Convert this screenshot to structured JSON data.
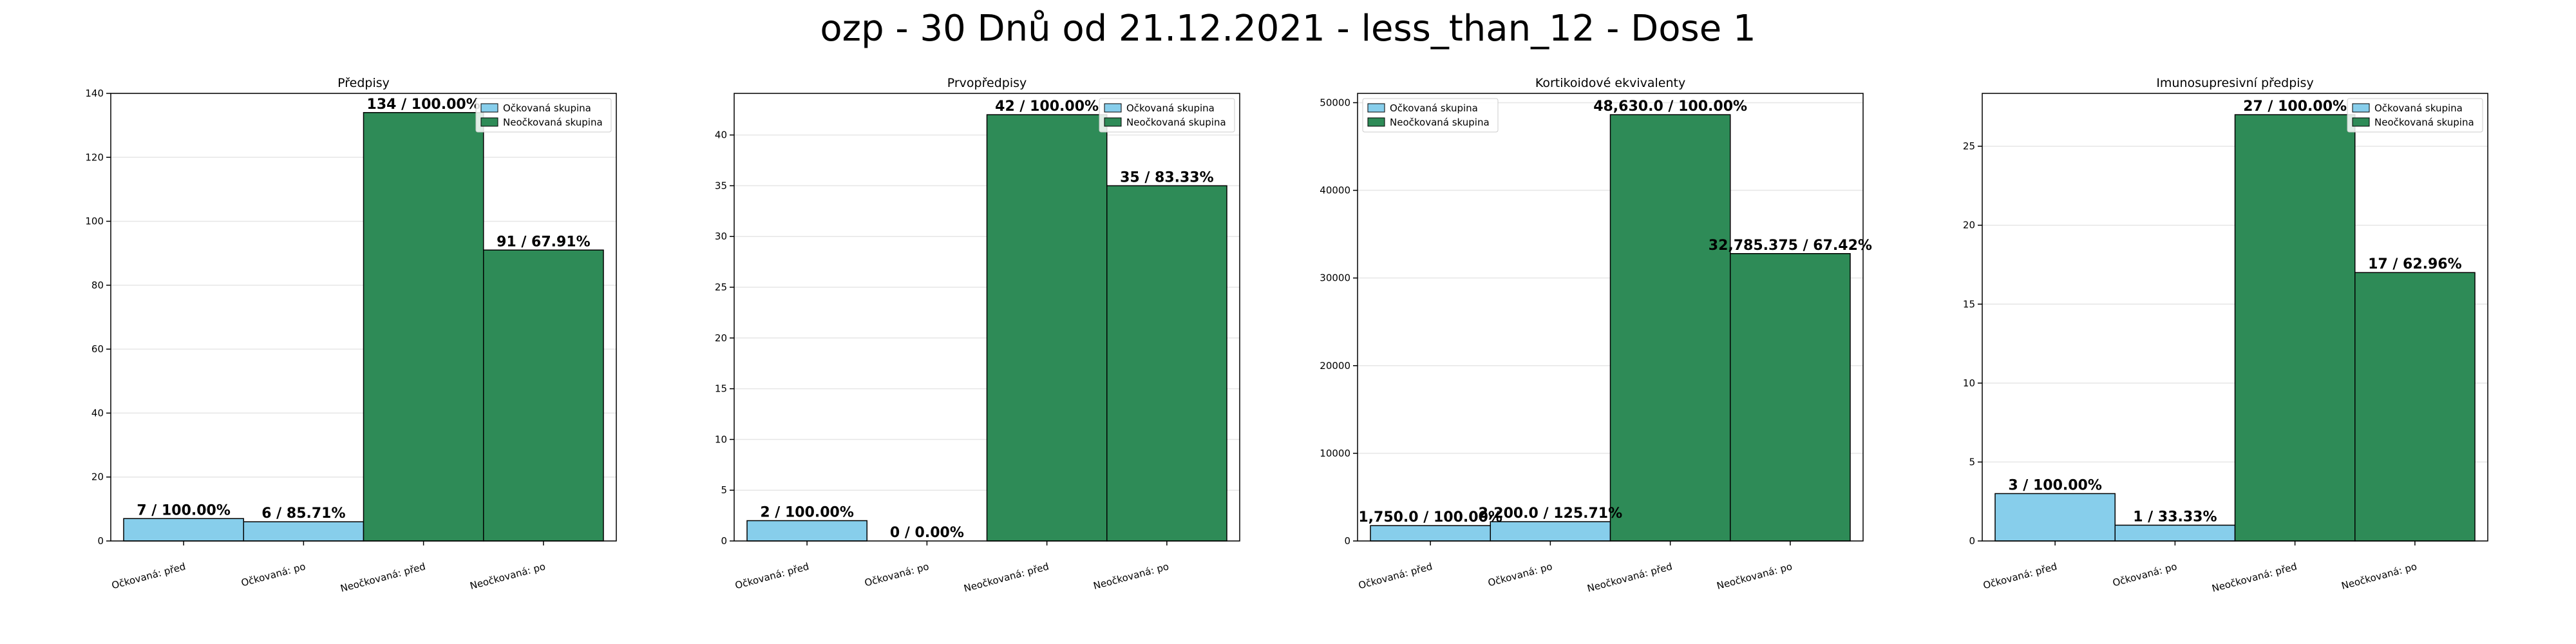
{
  "suptitle": "ozp - 30 Dnů od 21.12.2021 - less_than_12 - Dose 1",
  "colors": {
    "vaccinated": "#87ceeb",
    "unvaccinated": "#2e8b57",
    "edge": "#000000",
    "grid": "#e6e6e6"
  },
  "chart_data": [
    {
      "type": "bar",
      "title": "Předpisy",
      "categories": [
        "Očkovaná: před",
        "Očkovaná: po",
        "Neočkovaná: před",
        "Neočkovaná: po"
      ],
      "values": [
        7,
        6,
        134,
        91
      ],
      "labels": [
        "7 / 100.00%",
        "6 / 85.71%",
        "134 / 100.00%",
        "91 / 67.91%"
      ],
      "groups": [
        0,
        0,
        1,
        1
      ],
      "ylim": [
        0,
        140
      ],
      "yticks": [
        0,
        20,
        40,
        60,
        80,
        100,
        120,
        140
      ],
      "legend": [
        "Očkovaná skupina",
        "Neočkovaná skupina"
      ],
      "legend_loc": "upper right",
      "grid": true
    },
    {
      "type": "bar",
      "title": "Prvopředpisy",
      "categories": [
        "Očkovaná: před",
        "Očkovaná: po",
        "Neočkovaná: před",
        "Neočkovaná: po"
      ],
      "values": [
        2,
        0,
        42,
        35
      ],
      "labels": [
        "2 / 100.00%",
        "0 / 0.00%",
        "42 / 100.00%",
        "35 / 83.33%"
      ],
      "groups": [
        0,
        0,
        1,
        1
      ],
      "ylim": [
        0,
        44.1
      ],
      "yticks": [
        0,
        5,
        10,
        15,
        20,
        25,
        30,
        35,
        40
      ],
      "legend": [
        "Očkovaná skupina",
        "Neočkovaná skupina"
      ],
      "legend_loc": "upper right",
      "grid": true
    },
    {
      "type": "bar",
      "title": "Kortikoidové ekvivalenty",
      "categories": [
        "Očkovaná: před",
        "Očkovaná: po",
        "Neočkovaná: před",
        "Neočkovaná: po"
      ],
      "values": [
        1750.0,
        2200.0,
        48630.0,
        32785.375
      ],
      "labels": [
        "1,750.0 / 100.00%",
        "2,200.0 / 125.71%",
        "48,630.0 / 100.00%",
        "32,785.375 / 67.42%"
      ],
      "groups": [
        0,
        0,
        1,
        1
      ],
      "ylim": [
        0,
        51061.5
      ],
      "yticks": [
        0,
        10000,
        20000,
        30000,
        40000,
        50000
      ],
      "legend": [
        "Očkovaná skupina",
        "Neočkovaná skupina"
      ],
      "legend_loc": "upper left",
      "grid": true
    },
    {
      "type": "bar",
      "title": "Imunosupresivní předpisy",
      "categories": [
        "Očkovaná: před",
        "Očkovaná: po",
        "Neočkovaná: před",
        "Neočkovaná: po"
      ],
      "values": [
        3,
        1,
        27,
        17
      ],
      "labels": [
        "3 / 100.00%",
        "1 / 33.33%",
        "27 / 100.00%",
        "17 / 62.96%"
      ],
      "groups": [
        0,
        0,
        1,
        1
      ],
      "ylim": [
        0,
        28.35
      ],
      "yticks": [
        0,
        5,
        10,
        15,
        20,
        25
      ],
      "legend": [
        "Očkovaná skupina",
        "Neočkovaná skupina"
      ],
      "legend_loc": "upper right",
      "grid": true
    }
  ]
}
